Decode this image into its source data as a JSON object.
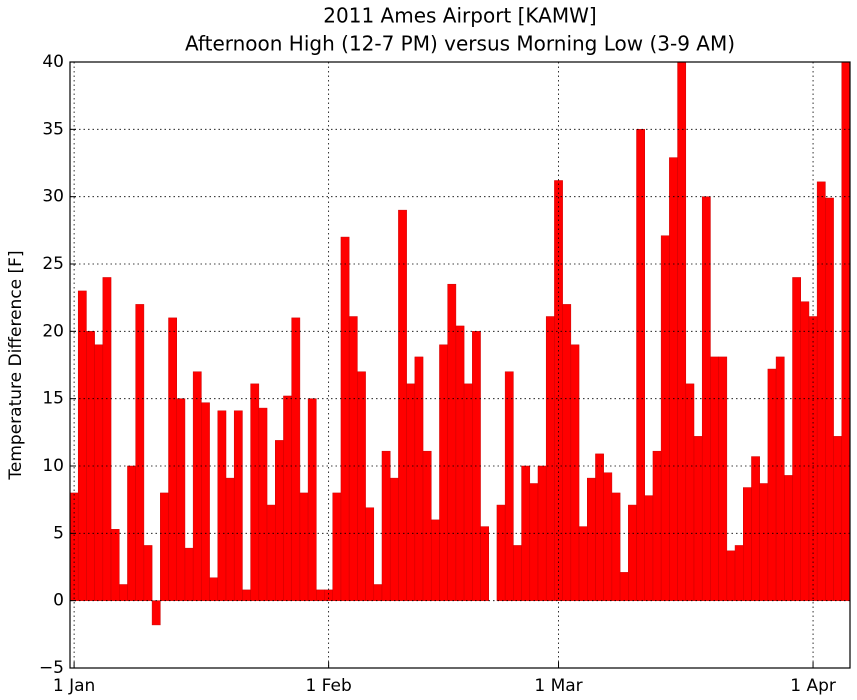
{
  "chart_data": {
    "type": "bar",
    "title": "2011 Ames Airport [KAMW]",
    "subtitle": "Afternoon High (12-7 PM) versus Morning Low (3-9 AM)",
    "y_label": "Temperature Difference [F]",
    "color": "#ff0000",
    "grid": true,
    "x": [
      0,
      1,
      2,
      3,
      4,
      5,
      6,
      7,
      8,
      9,
      10,
      11,
      12,
      13,
      14,
      15,
      16,
      17,
      18,
      19,
      20,
      21,
      22,
      23,
      24,
      25,
      26,
      27,
      28,
      29,
      30,
      31,
      32,
      33,
      34,
      35,
      36,
      37,
      38,
      39,
      40,
      41,
      42,
      43,
      44,
      45,
      46,
      47,
      48,
      49,
      50,
      51,
      52,
      53,
      54,
      55,
      56,
      57,
      58,
      59,
      60,
      61,
      62,
      63,
      64,
      65,
      66,
      67,
      68,
      69,
      70,
      71,
      72,
      73,
      74,
      75,
      76,
      77,
      78,
      79,
      80,
      81,
      82,
      83,
      84,
      85,
      86,
      87,
      88,
      89,
      90,
      91,
      92,
      93,
      94
    ],
    "values": [
      8,
      23,
      20,
      19,
      24,
      5.3,
      1.2,
      10,
      22,
      4.1,
      -1.8,
      8,
      21,
      15,
      3.9,
      17,
      14.7,
      1.7,
      14.1,
      9.1,
      14.1,
      0.8,
      16.1,
      14.3,
      7.1,
      11.9,
      15.2,
      21,
      8,
      15,
      0.8,
      0.8,
      8,
      27,
      21.1,
      17,
      6.9,
      1.2,
      11.1,
      9.1,
      29,
      16.1,
      18.1,
      11.1,
      6,
      19,
      23.5,
      20.4,
      16.1,
      20,
      5.5,
      0,
      7.1,
      17,
      4.1,
      10,
      8.7,
      10,
      21.1,
      31.2,
      22,
      19,
      5.5,
      9.1,
      10.9,
      9.5,
      8,
      2.1,
      7.1,
      35,
      7.8,
      11.1,
      27.1,
      32.9,
      40,
      16.1,
      12.2,
      30,
      18.1,
      18.1,
      3.7,
      4.1,
      8.4,
      10.7,
      8.7,
      17.2,
      18.1,
      9.3,
      24,
      22.2,
      21.1,
      31.1,
      29.9,
      12.2,
      40
    ],
    "xlim": [
      -0.5,
      94.5
    ],
    "xticks": [
      {
        "value": 0,
        "label": "1 Jan"
      },
      {
        "value": 31,
        "label": "1 Feb"
      },
      {
        "value": 59,
        "label": "1 Mar"
      },
      {
        "value": 90,
        "label": "1 Apr"
      }
    ],
    "ylim": [
      -5,
      40
    ],
    "yticks": [
      {
        "value": -5,
        "label": "−5"
      },
      0,
      5,
      10,
      15,
      20,
      25,
      30,
      35,
      40
    ]
  }
}
